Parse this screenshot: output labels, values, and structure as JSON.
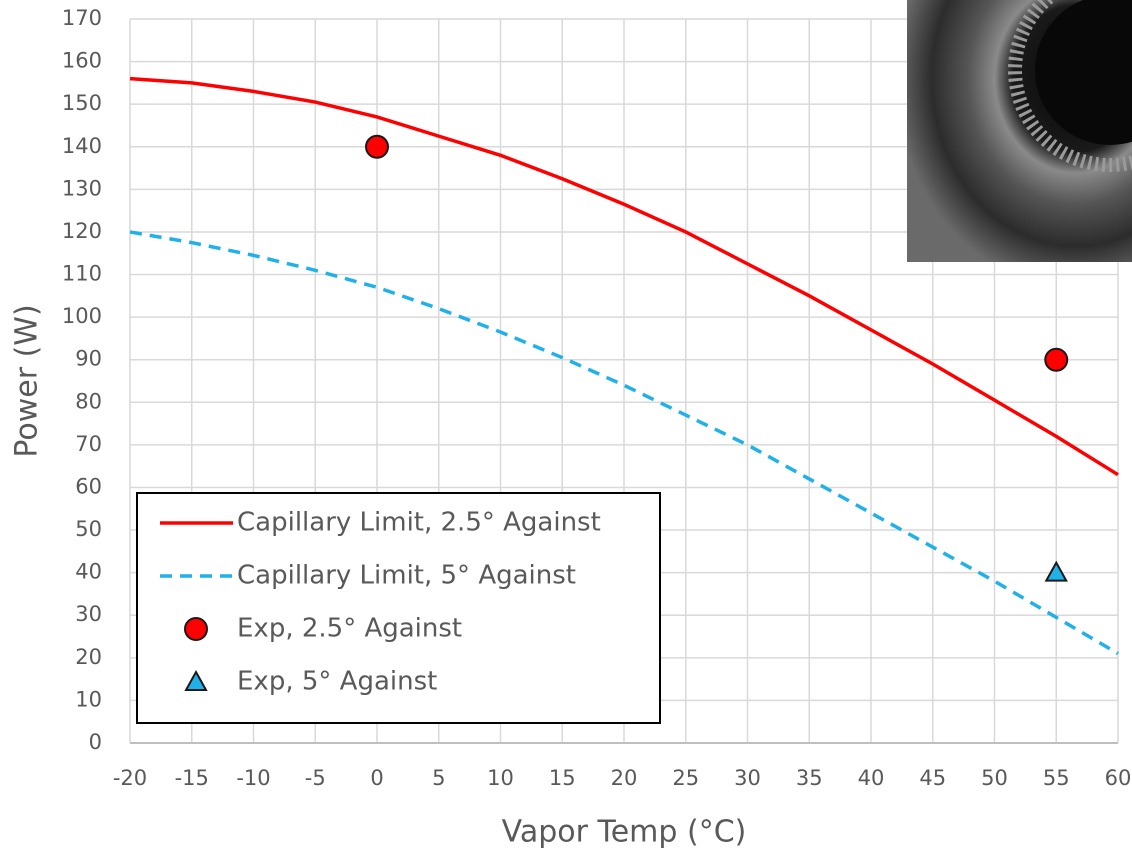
{
  "chart_data": {
    "type": "line",
    "x_label": "Vapor Temp (°C)",
    "y_label": "Power (W)",
    "xlim": [
      -20,
      60
    ],
    "xticks": [
      -20,
      -15,
      -10,
      -5,
      0,
      5,
      10,
      15,
      20,
      25,
      30,
      35,
      40,
      45,
      50,
      55,
      60
    ],
    "ylim": [
      0,
      170
    ],
    "yticks": [
      0,
      10,
      20,
      30,
      40,
      50,
      60,
      70,
      80,
      90,
      100,
      110,
      120,
      130,
      140,
      150,
      160,
      170
    ],
    "grid": true,
    "legend": "lower left",
    "series": [
      {
        "name": "Capillary Limit, 2.5° Against",
        "color": "#ff0000",
        "style": "solid",
        "x": [
          -20,
          -15,
          -10,
          -5,
          0,
          5,
          10,
          15,
          20,
          25,
          30,
          35,
          40,
          45,
          50,
          55,
          60
        ],
        "values": [
          156,
          155,
          153,
          150.5,
          147,
          142.5,
          138,
          132.5,
          126.5,
          120,
          112.5,
          105,
          97,
          89,
          80.5,
          72,
          63
        ]
      },
      {
        "name": "Capillary Limit, 5° Against",
        "color": "#1fb1e8",
        "style": "dashed",
        "x": [
          -20,
          -15,
          -10,
          -5,
          0,
          5,
          10,
          15,
          20,
          25,
          30,
          35,
          40,
          45,
          50,
          55,
          60
        ],
        "values": [
          120,
          117.5,
          114.5,
          111,
          107,
          102,
          96.5,
          90.5,
          84,
          77,
          70,
          62,
          54,
          46,
          38,
          29.5,
          21
        ]
      },
      {
        "name": "Exp, 2.5° Against",
        "color": "#ff0000",
        "marker": "circle",
        "x": [
          0,
          55
        ],
        "values": [
          140,
          90
        ]
      },
      {
        "name": "Exp, 5° Against",
        "color": "#1fb1e8",
        "marker": "triangle",
        "x": [
          55
        ],
        "values": [
          40
        ]
      }
    ]
  }
}
